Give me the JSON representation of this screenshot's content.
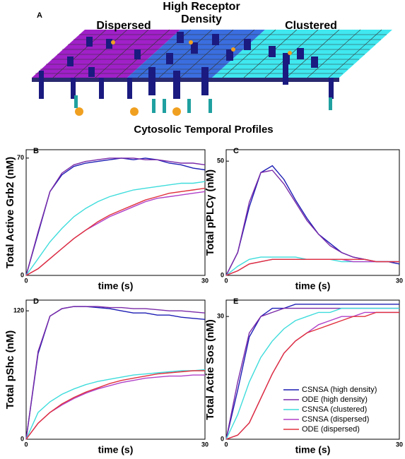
{
  "panel_a": {
    "label": "A",
    "left_label": "Dispersed",
    "middle_label_lines": [
      "High Receptor",
      "Density"
    ],
    "right_label": "Clustered"
  },
  "section_title": "Cytosolic Temporal Profiles",
  "chart_data": [
    {
      "type": "line",
      "panel": "B",
      "y_label": "Total Active Grb2 (nM)",
      "x_label": "time (s)",
      "x": [
        0,
        2,
        4,
        6,
        8,
        10,
        12,
        14,
        16,
        18,
        20,
        22,
        24,
        26,
        28,
        30
      ],
      "xlim": [
        0,
        30
      ],
      "xticks": [
        0,
        30
      ],
      "ylim": [
        0,
        75
      ],
      "yticks": [
        0,
        70
      ],
      "series": [
        {
          "color": "#1c1cb4",
          "values": [
            0,
            25,
            50,
            60,
            65,
            67,
            68,
            69,
            70,
            69,
            70,
            69,
            67,
            66,
            64,
            63
          ]
        },
        {
          "color": "#7a2aa8",
          "values": [
            0,
            26,
            50,
            61,
            66,
            68,
            69,
            70,
            70,
            70,
            69,
            69,
            68,
            67,
            67,
            66
          ]
        },
        {
          "color": "#3fdcdc",
          "values": [
            0,
            10,
            20,
            28,
            35,
            40,
            44,
            47,
            49,
            51,
            52,
            53,
            54,
            55,
            55,
            56
          ]
        },
        {
          "color": "#b040c8",
          "values": [
            0,
            4,
            10,
            16,
            22,
            27,
            31,
            35,
            38,
            41,
            44,
            46,
            47,
            48,
            49,
            50
          ]
        },
        {
          "color": "#e0303c",
          "values": [
            0,
            4,
            10,
            16,
            22,
            27,
            32,
            36,
            39,
            42,
            45,
            47,
            49,
            50,
            51,
            52
          ]
        }
      ]
    },
    {
      "type": "line",
      "panel": "C",
      "y_label": "Total pPLCγ (nM)",
      "x_label": "time (s)",
      "x": [
        0,
        2,
        4,
        6,
        8,
        10,
        12,
        14,
        16,
        18,
        20,
        22,
        24,
        26,
        28,
        30
      ],
      "xlim": [
        0,
        30
      ],
      "xticks": [
        0,
        30
      ],
      "ylim": [
        0,
        55
      ],
      "yticks": [
        0,
        50
      ],
      "series": [
        {
          "color": "#1c1cb4",
          "values": [
            0,
            10,
            30,
            45,
            48,
            42,
            33,
            25,
            18,
            14,
            10,
            8,
            7,
            6,
            6,
            5
          ]
        },
        {
          "color": "#7a2aa8",
          "values": [
            0,
            10,
            32,
            45,
            46,
            40,
            32,
            24,
            18,
            13,
            10,
            8,
            7,
            6,
            6,
            6
          ]
        },
        {
          "color": "#3fdcdc",
          "values": [
            0,
            4,
            7,
            8,
            8,
            8,
            8,
            7,
            7,
            7,
            6,
            6,
            6,
            6,
            6,
            6
          ]
        },
        {
          "color": "#b040c8",
          "values": [
            0,
            2,
            5,
            6,
            7,
            7,
            7,
            7,
            7,
            7,
            7,
            6,
            6,
            6,
            6,
            6
          ]
        },
        {
          "color": "#e0303c",
          "values": [
            0,
            2,
            5,
            6,
            7,
            7,
            7,
            7,
            7,
            7,
            7,
            7,
            7,
            6,
            6,
            6
          ]
        }
      ]
    },
    {
      "type": "line",
      "panel": "D",
      "y_label": "Total pShc (nM)",
      "x_label": "time (s)",
      "x": [
        0,
        2,
        4,
        6,
        8,
        10,
        12,
        14,
        16,
        18,
        20,
        22,
        24,
        26,
        28,
        30
      ],
      "xlim": [
        0,
        30
      ],
      "xticks": [
        0,
        30
      ],
      "ylim": [
        0,
        130
      ],
      "yticks": [
        0,
        120
      ],
      "series": [
        {
          "color": "#1c1cb4",
          "values": [
            0,
            80,
            115,
            122,
            124,
            124,
            123,
            122,
            120,
            118,
            118,
            116,
            116,
            114,
            113,
            112
          ]
        },
        {
          "color": "#7a2aa8",
          "values": [
            0,
            82,
            115,
            122,
            124,
            124,
            124,
            123,
            123,
            122,
            122,
            121,
            120,
            120,
            119,
            118
          ]
        },
        {
          "color": "#3fdcdc",
          "values": [
            0,
            25,
            35,
            42,
            47,
            51,
            54,
            56,
            58,
            60,
            61,
            62,
            63,
            64,
            64,
            65
          ]
        },
        {
          "color": "#b040c8",
          "values": [
            0,
            15,
            25,
            32,
            38,
            43,
            47,
            50,
            53,
            55,
            57,
            58,
            59,
            59,
            60,
            60
          ]
        },
        {
          "color": "#e0303c",
          "values": [
            0,
            15,
            25,
            33,
            39,
            44,
            48,
            52,
            55,
            57,
            59,
            61,
            62,
            63,
            64,
            64
          ]
        }
      ]
    },
    {
      "type": "line",
      "panel": "E",
      "y_label": "Total Actie Sos (nM)",
      "x_label": "time (s)",
      "x": [
        0,
        2,
        4,
        6,
        8,
        10,
        12,
        14,
        16,
        18,
        20,
        22,
        24,
        26,
        28,
        30
      ],
      "xlim": [
        0,
        30
      ],
      "xticks": [
        0,
        30
      ],
      "ylim": [
        0,
        34
      ],
      "yticks": [
        0,
        30
      ],
      "legend": "lower right",
      "series": [
        {
          "name": "CSNSA (high density)",
          "color": "#1c1cb4",
          "values": [
            0,
            12,
            25,
            30,
            32,
            32,
            33,
            33,
            33,
            33,
            33,
            33,
            33,
            33,
            33,
            33
          ]
        },
        {
          "name": "ODE (high density)",
          "color": "#7a2aa8",
          "values": [
            0,
            14,
            26,
            30,
            31,
            32,
            32,
            32,
            32,
            32,
            32,
            32,
            32,
            32,
            32,
            32
          ]
        },
        {
          "name": "CSNSA (clustered)",
          "color": "#3fdcdc",
          "values": [
            0,
            6,
            14,
            20,
            24,
            27,
            29,
            30,
            31,
            31,
            32,
            32,
            32,
            32,
            32,
            32
          ]
        },
        {
          "name": "CSNSA (dispersed)",
          "color": "#b040c8",
          "values": [
            0,
            1,
            4,
            10,
            16,
            21,
            24,
            26,
            28,
            29,
            30,
            30,
            31,
            31,
            31,
            31
          ]
        },
        {
          "name": "ODE (dispersed)",
          "color": "#e0303c",
          "values": [
            0,
            1,
            4,
            10,
            16,
            21,
            24,
            26,
            27,
            28,
            29,
            30,
            30,
            31,
            31,
            31
          ]
        }
      ]
    }
  ]
}
